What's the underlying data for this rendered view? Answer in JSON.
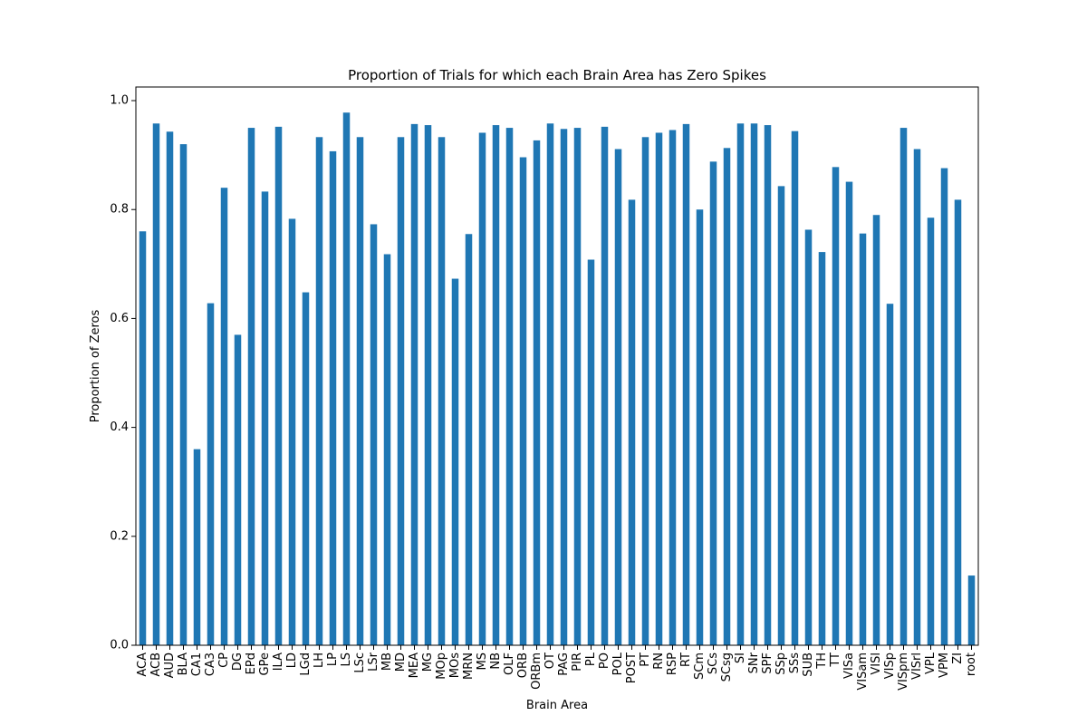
{
  "chart_data": {
    "type": "bar",
    "title": "Proportion of Trials for which each Brain Area has Zero Spikes",
    "xlabel": "Brain Area",
    "ylabel": "Proportion of Zeros",
    "ylim": [
      0,
      1.025
    ],
    "yticks": [
      "0.0",
      "0.2",
      "0.4",
      "0.6",
      "0.8",
      "1.0"
    ],
    "grid": false,
    "bar_color": "#1f77b4",
    "categories": [
      "ACA",
      "ACB",
      "AUD",
      "BLA",
      "CA1",
      "CA3",
      "CP",
      "DG",
      "EPd",
      "GPe",
      "ILA",
      "LD",
      "LGd",
      "LH",
      "LP",
      "LS",
      "LSc",
      "LSr",
      "MB",
      "MD",
      "MEA",
      "MG",
      "MOp",
      "MOs",
      "MRN",
      "MS",
      "NB",
      "OLF",
      "ORB",
      "ORBm",
      "OT",
      "PAG",
      "PIR",
      "PL",
      "PO",
      "POL",
      "POST",
      "PT",
      "RN",
      "RSP",
      "RT",
      "SCm",
      "SCs",
      "SCsg",
      "SI",
      "SNr",
      "SPF",
      "SSp",
      "SSs",
      "SUB",
      "TH",
      "TT",
      "VISa",
      "VISam",
      "VISl",
      "VISp",
      "VISpm",
      "VISrl",
      "VPL",
      "VPM",
      "ZI",
      "root"
    ],
    "values": [
      0.76,
      0.958,
      0.943,
      0.92,
      0.36,
      0.628,
      0.84,
      0.57,
      0.95,
      0.833,
      0.952,
      0.783,
      0.648,
      0.933,
      0.907,
      0.978,
      0.933,
      0.773,
      0.718,
      0.933,
      0.957,
      0.955,
      0.933,
      0.673,
      0.755,
      0.941,
      0.955,
      0.95,
      0.896,
      0.927,
      0.958,
      0.948,
      0.95,
      0.708,
      0.952,
      0.911,
      0.818,
      0.933,
      0.941,
      0.946,
      0.957,
      0.8,
      0.888,
      0.913,
      0.958,
      0.958,
      0.955,
      0.843,
      0.944,
      0.763,
      0.722,
      0.878,
      0.851,
      0.756,
      0.79,
      0.627,
      0.95,
      0.911,
      0.785,
      0.876,
      0.818,
      0.128
    ]
  }
}
